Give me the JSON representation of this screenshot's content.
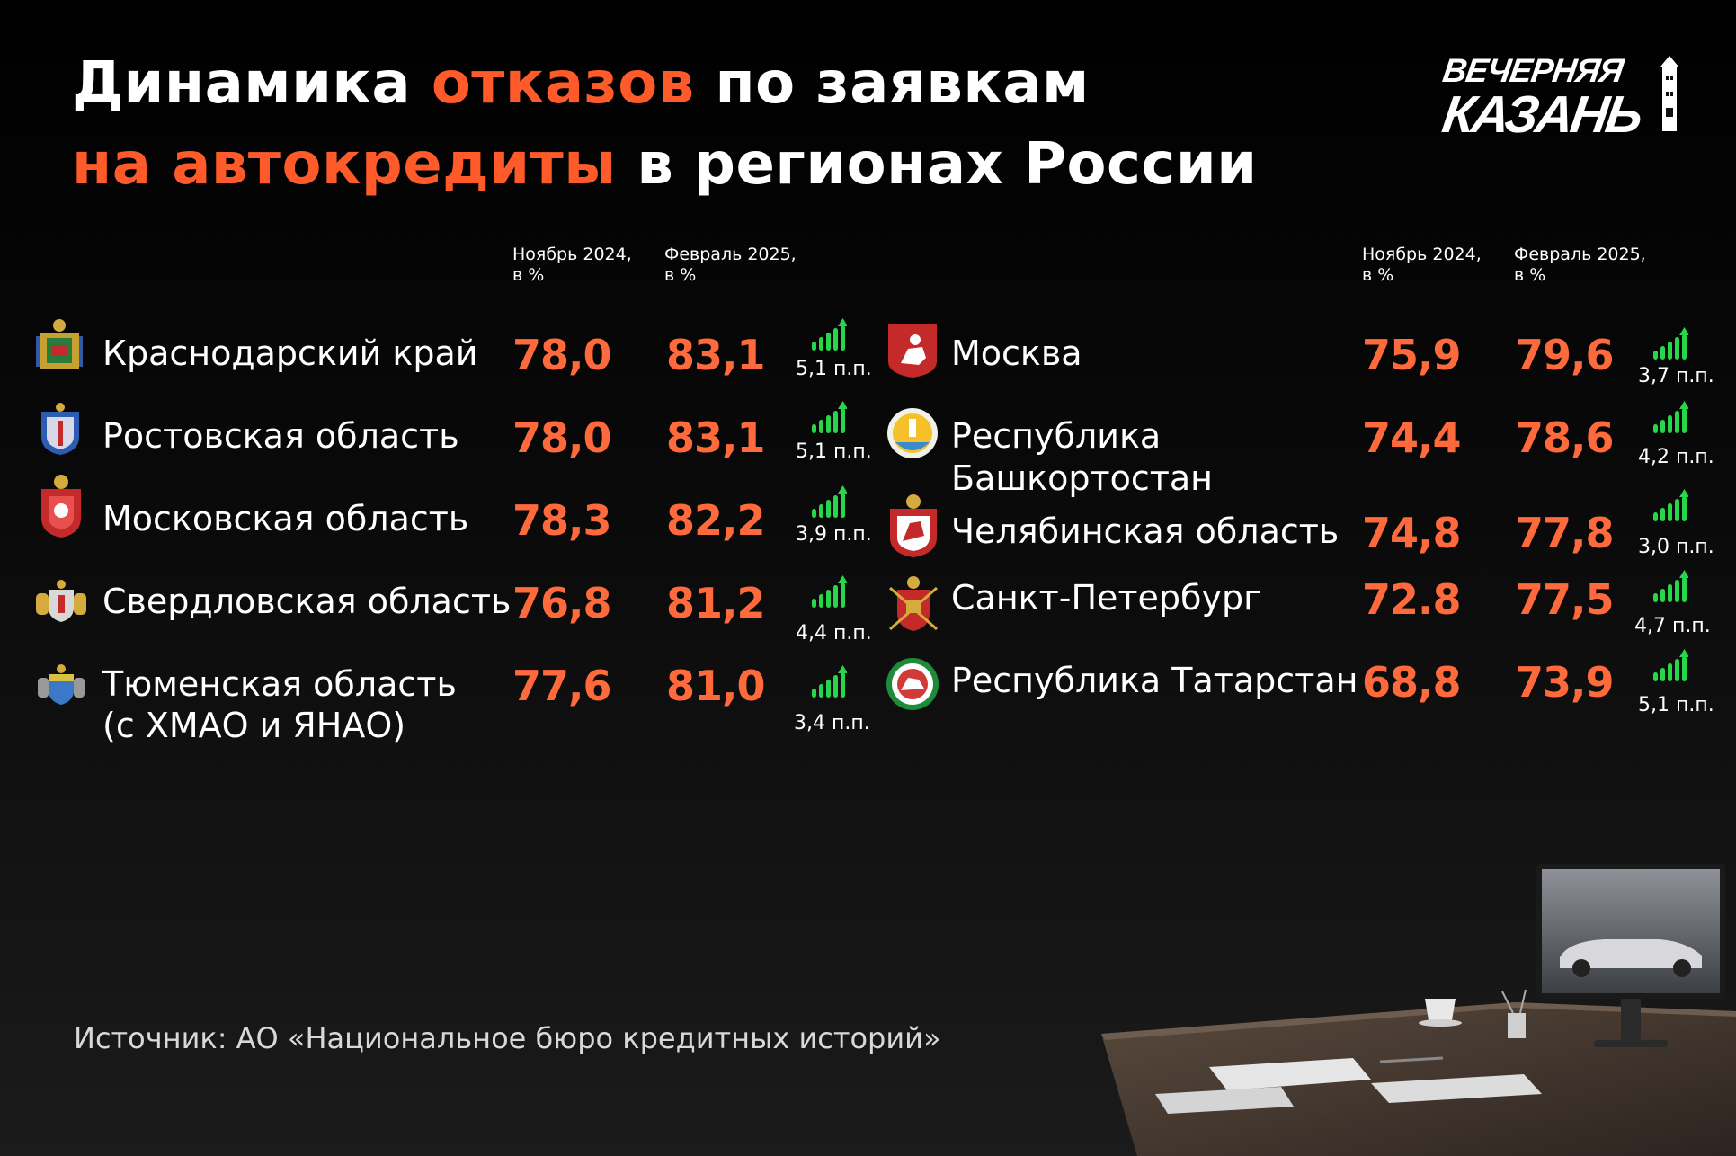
{
  "header": {
    "title_parts": [
      {
        "text": "Динамика ",
        "accent": false
      },
      {
        "text": "отказов",
        "accent": true
      },
      {
        "text": " по заявкам",
        "accent": false
      }
    ],
    "title_line2_parts": [
      {
        "text": "на автокредиты",
        "accent": true
      },
      {
        "text": " в регионах России",
        "accent": false
      }
    ],
    "accent_color": "#ff5a2a"
  },
  "logo": {
    "line1": "ВЕЧЕРНЯЯ",
    "line2": "КАЗАНЬ"
  },
  "columns": {
    "nov": "Ноябрь 2024, в %",
    "nov_line1": "Ноябрь 2024,",
    "nov_line2": "в %",
    "feb_line1": "Февраль 2025,",
    "feb_line2": "в %"
  },
  "left_rows": [
    {
      "region": "Краснодарский край",
      "region_line2": "",
      "nov": "78,0",
      "feb": "83,1",
      "delta": "5,1 п.п.",
      "emblem_icon": "krasnodar-emblem-icon"
    },
    {
      "region": "Ростовская область",
      "region_line2": "",
      "nov": "78,0",
      "feb": "83,1",
      "delta": "5,1 п.п.",
      "emblem_icon": "rostov-emblem-icon"
    },
    {
      "region": "Московская область",
      "region_line2": "",
      "nov": "78,3",
      "feb": "82,2",
      "delta": "3,9 п.п.",
      "emblem_icon": "moscow-oblast-emblem-icon"
    },
    {
      "region": "Свердловская область",
      "region_line2": "",
      "nov": "76,8",
      "feb": "81,2",
      "delta": "4,4 п.п.",
      "emblem_icon": "sverdlovsk-emblem-icon"
    },
    {
      "region": "Тюменская область",
      "region_line2": "(с ХМАО и ЯНАО)",
      "nov": "77,6",
      "feb": "81,0",
      "delta": "3,4 п.п.",
      "emblem_icon": "tyumen-emblem-icon"
    }
  ],
  "right_rows": [
    {
      "region": "Москва",
      "region_line2": "",
      "nov": "75,9",
      "feb": "79,6",
      "delta": "3,7 п.п.",
      "emblem_icon": "moscow-emblem-icon"
    },
    {
      "region": "Республика",
      "region_line2": "Башкортостан",
      "nov": "74,4",
      "feb": "78,6",
      "delta": "4,2 п.п.",
      "emblem_icon": "bashkortostan-emblem-icon"
    },
    {
      "region": "Челябинская область",
      "region_line2": "",
      "nov": "74,8",
      "feb": "77,8",
      "delta": "3,0 п.п.",
      "emblem_icon": "chelyabinsk-emblem-icon"
    },
    {
      "region": "Санкт-Петербург",
      "region_line2": "",
      "nov": "72.8",
      "feb": "77,5",
      "delta": "4,7 п.п.",
      "emblem_icon": "spb-emblem-icon"
    },
    {
      "region": "Республика Татарстан",
      "region_line2": "",
      "nov": "68,8",
      "feb": "73,9",
      "delta": "5,1 п.п.",
      "emblem_icon": "tatarstan-emblem-icon"
    }
  ],
  "trend_icon": "signal-up-icon",
  "trend_color": "#27d64a",
  "value_color": "#ff6a3d",
  "source": "Источник: АО «Национальное бюро кредитных историй»"
}
